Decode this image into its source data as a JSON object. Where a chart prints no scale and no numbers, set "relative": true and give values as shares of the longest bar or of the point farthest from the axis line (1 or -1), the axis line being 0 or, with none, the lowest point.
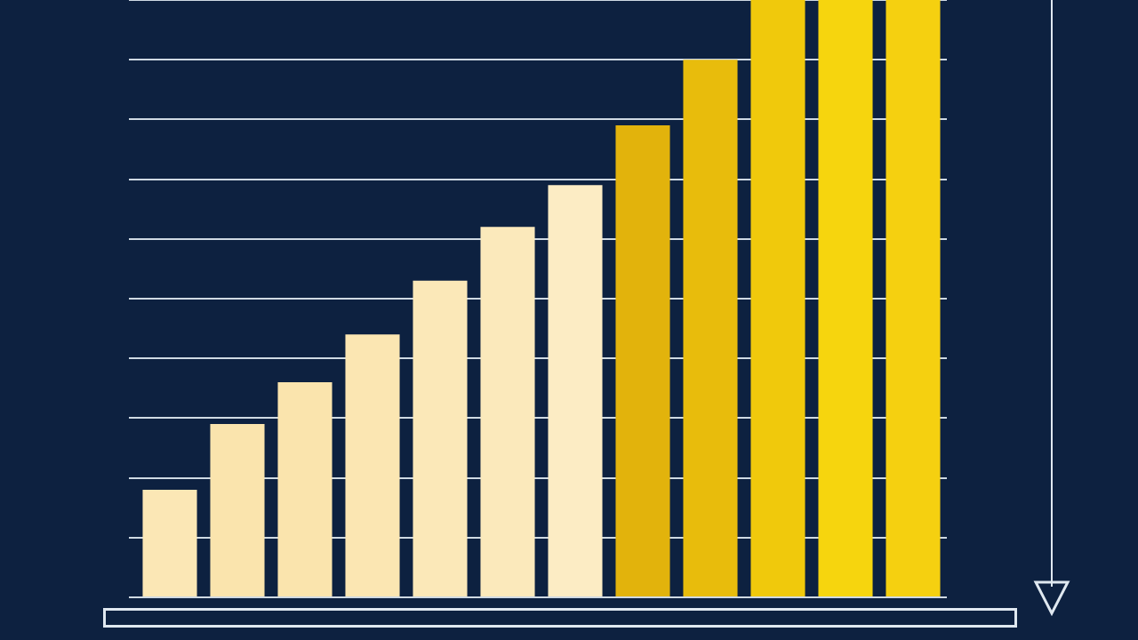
{
  "chart_data": {
    "type": "bar",
    "relative": true,
    "grid": "y",
    "legend": false,
    "tick_labels": false,
    "categories": [
      null,
      null,
      null,
      null,
      null,
      null,
      null,
      null,
      null,
      null,
      null,
      null
    ],
    "values": [
      0.18,
      0.29,
      0.36,
      0.44,
      0.53,
      0.62,
      0.69,
      0.79,
      0.9,
      1,
      1,
      1
    ],
    "colors": [
      "#fbe7b5",
      "#fae4ad",
      "#fae4ad",
      "#fbe6b2",
      "#fbe8b8",
      "#fbe9bb",
      "#fcecc4",
      "#e2b30c",
      "#e8bc0c",
      "#f0c90c",
      "#f6d50e",
      "#f5d010"
    ]
  }
}
